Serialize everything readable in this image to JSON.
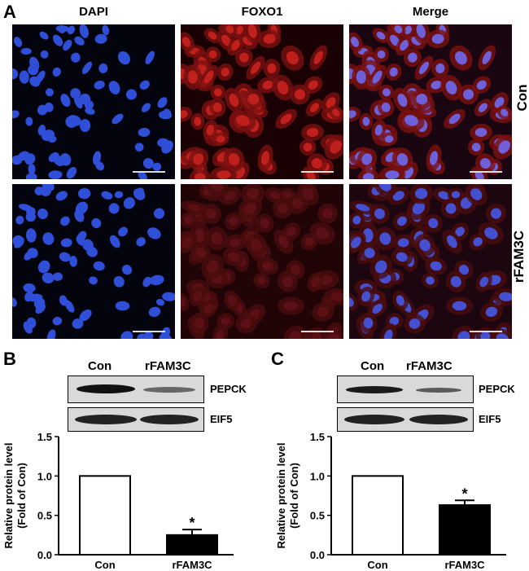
{
  "panel_a": {
    "letter": "A",
    "columns": [
      "DAPI",
      "FOXO1",
      "Merge"
    ],
    "rows": [
      "Con",
      "rFAM3C"
    ]
  },
  "panel_b": {
    "letter": "B",
    "lanes": [
      "Con",
      "rFAM3C"
    ],
    "blots": [
      "PEPCK",
      "EIF5"
    ],
    "significance": "*"
  },
  "panel_c": {
    "letter": "C",
    "lanes": [
      "Con",
      "rFAM3C"
    ],
    "blots": [
      "PEPCK",
      "EIF5"
    ],
    "significance": "*"
  },
  "chart_data": [
    {
      "type": "bar",
      "categories": [
        "Con",
        "rFAM3C"
      ],
      "values": [
        1.0,
        0.25
      ],
      "errors": [
        0,
        0.07
      ],
      "ylabel": "Relative protein level\n(Fold of Con)",
      "ylim": [
        0,
        1.5
      ],
      "yticks": [
        "0.0",
        "0.5",
        "1.0",
        "1.5"
      ],
      "bar_colors": [
        "#ffffff",
        "#000000"
      ]
    },
    {
      "type": "bar",
      "categories": [
        "Con",
        "rFAM3C"
      ],
      "values": [
        1.0,
        0.63
      ],
      "errors": [
        0,
        0.06
      ],
      "ylabel": "Relative protein level\n(Fold of Con)",
      "ylim": [
        0,
        1.5
      ],
      "yticks": [
        "0.0",
        "0.5",
        "1.0",
        "1.5"
      ],
      "bar_colors": [
        "#ffffff",
        "#000000"
      ]
    }
  ]
}
